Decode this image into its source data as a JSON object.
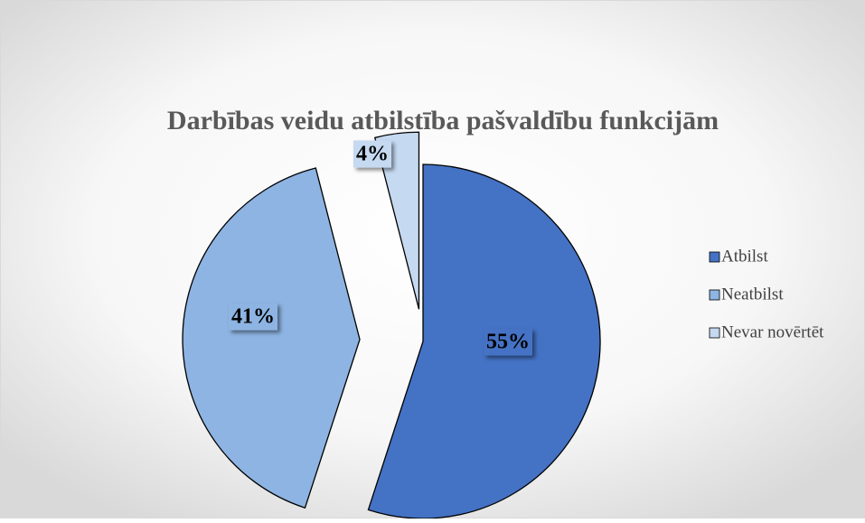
{
  "chart_data": {
    "type": "pie",
    "title": "Darbības veidu atbilstība pašvaldību funkcijām",
    "categories": [
      "Atbilst",
      "Neatbilst",
      "Nevar novērtēt"
    ],
    "values": [
      55,
      41,
      4
    ],
    "value_labels": [
      "55%",
      "41%",
      "4%"
    ],
    "colors": [
      "#4472c4",
      "#8db4e2",
      "#c5d9f1"
    ],
    "legend": "right"
  }
}
